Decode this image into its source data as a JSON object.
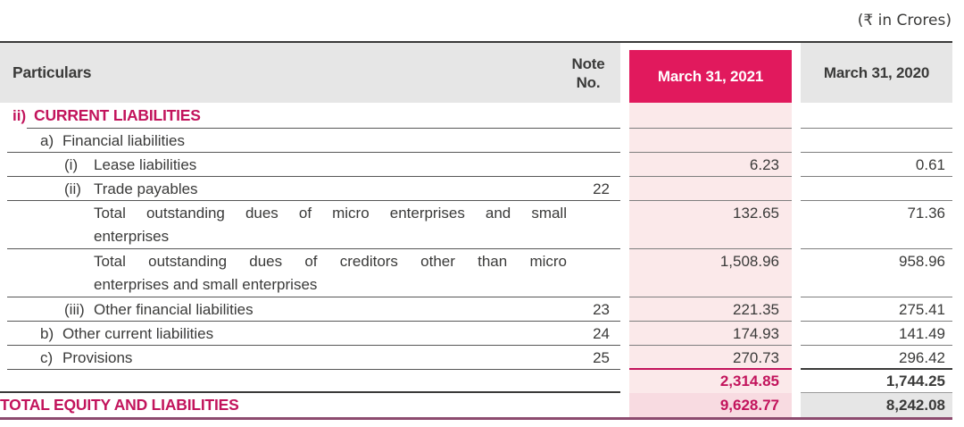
{
  "units_note": "(₹ in Crores)",
  "colors": {
    "brand_pink": "#E1195D",
    "pink_text": "#C2145C",
    "light_pink_column": "#FBE9EA",
    "total_row_pink": "#F8DBE1",
    "header_gray": "#E6E6E6",
    "text_dark": "#3A3A39",
    "bottom_rule": "#8D4B6F"
  },
  "header": {
    "particulars": "Particulars",
    "note_line1": "Note",
    "note_line2": "No.",
    "col_2021": "March 31, 2021",
    "col_2020": "March 31, 2020"
  },
  "rows": [
    {
      "marker": "ii)",
      "label": "CURRENT LIABILITIES"
    },
    {
      "marker": "a)",
      "label": "Financial liabilities"
    },
    {
      "marker": "(i)",
      "label": "Lease liabilities",
      "v2021": "6.23",
      "v2020": "0.61"
    },
    {
      "marker": "(ii)",
      "label": "Trade payables",
      "note": "22"
    },
    {
      "line1": "Total outstanding dues of micro enterprises and small",
      "line2": "enterprises",
      "v2021": "132.65",
      "v2020": "71.36"
    },
    {
      "line1": "Total outstanding dues of creditors other than micro",
      "line2": "enterprises and small enterprises",
      "v2021": "1,508.96",
      "v2020": "958.96"
    },
    {
      "marker": "(iii)",
      "label": "Other financial liabilities",
      "note": "23",
      "v2021": "221.35",
      "v2020": "275.41"
    },
    {
      "marker": "b)",
      "label": "Other current liabilities",
      "note": "24",
      "v2021": "174.93",
      "v2020": "141.49"
    },
    {
      "marker": "c)",
      "label": "Provisions",
      "note": "25",
      "v2021": "270.73",
      "v2020": "296.42"
    },
    {
      "v2021": "2,314.85",
      "v2020": "1,744.25"
    },
    {
      "label": "TOTAL EQUITY AND LIABILITIES",
      "v2021": "9,628.77",
      "v2020": "8,242.08"
    }
  ]
}
